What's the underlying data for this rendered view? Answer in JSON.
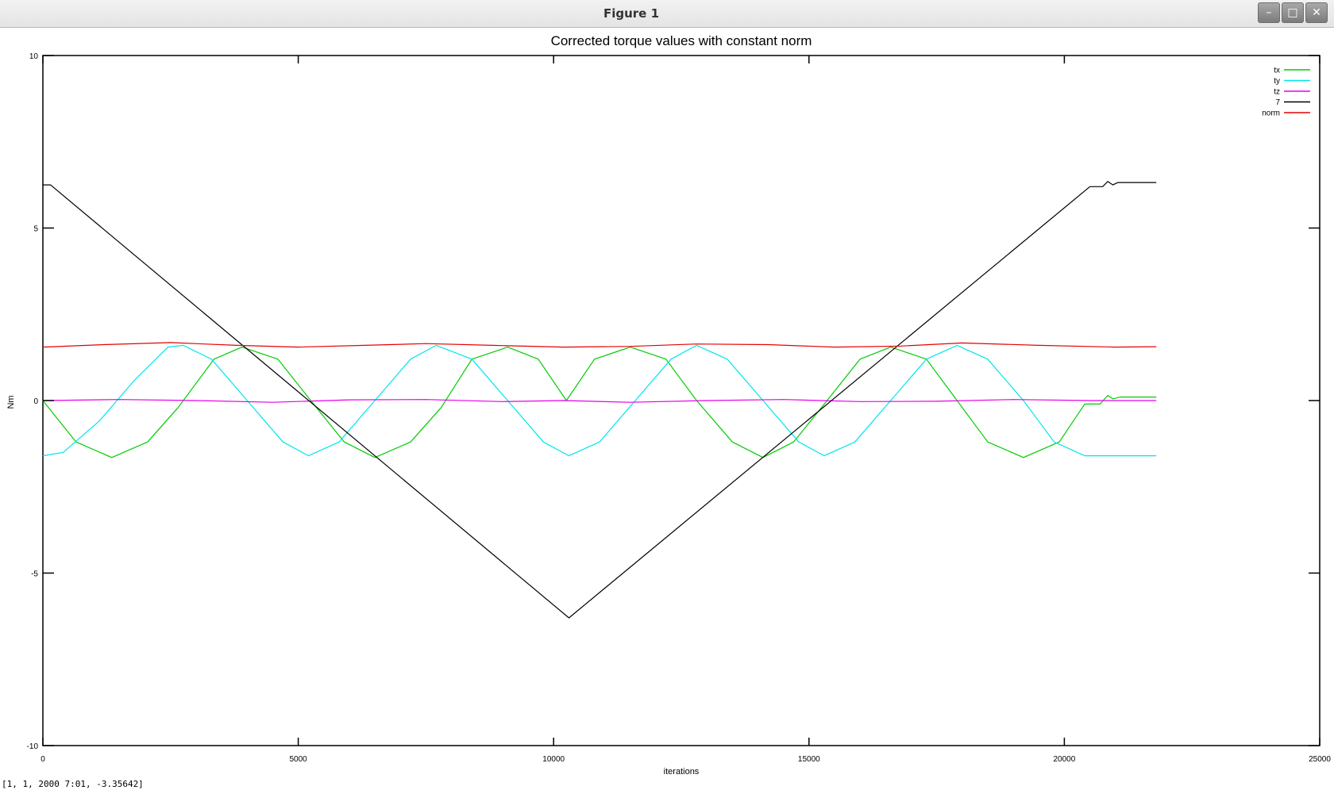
{
  "window": {
    "title": "Figure 1",
    "minimize_glyph": "–",
    "maximize_glyph": "□",
    "close_glyph": "✕"
  },
  "status": {
    "text": "[1, 1, 2000 7:01, -3.35642]"
  },
  "chart_data": {
    "type": "line",
    "title": "Corrected torque values with constant norm",
    "xlabel": "iterations",
    "ylabel": "Nm",
    "xlim": [
      0,
      25000
    ],
    "ylim": [
      -10,
      10
    ],
    "xticks": [
      0,
      5000,
      10000,
      15000,
      20000,
      25000
    ],
    "yticks": [
      -10,
      -5,
      0,
      5,
      10
    ],
    "xtick_labels": [
      "0",
      "5000",
      "10000",
      "15000",
      "20000",
      "25000"
    ],
    "ytick_labels": [
      "-10",
      "-5",
      "0",
      "5",
      "10"
    ],
    "grid": false,
    "legend_position": "top-right",
    "series": [
      {
        "name": "tx",
        "color": "#00cc00",
        "points": [
          [
            0,
            0
          ],
          [
            650,
            -1.2
          ],
          [
            1350,
            -1.65
          ],
          [
            2050,
            -1.2
          ],
          [
            2650,
            -0.2
          ],
          [
            3350,
            1.2
          ],
          [
            3900,
            1.55
          ],
          [
            4600,
            1.2
          ],
          [
            5300,
            -0.1
          ],
          [
            5900,
            -1.2
          ],
          [
            6500,
            -1.65
          ],
          [
            7200,
            -1.2
          ],
          [
            7800,
            -0.2
          ],
          [
            8400,
            1.2
          ],
          [
            9100,
            1.55
          ],
          [
            9700,
            1.2
          ],
          [
            10250,
            0
          ],
          [
            10800,
            1.2
          ],
          [
            11500,
            1.55
          ],
          [
            12200,
            1.2
          ],
          [
            12800,
            0
          ],
          [
            13500,
            -1.2
          ],
          [
            14100,
            -1.65
          ],
          [
            14700,
            -1.2
          ],
          [
            15300,
            -0.1
          ],
          [
            16000,
            1.2
          ],
          [
            16600,
            1.55
          ],
          [
            17300,
            1.2
          ],
          [
            17900,
            0
          ],
          [
            18500,
            -1.2
          ],
          [
            19200,
            -1.65
          ],
          [
            19900,
            -1.2
          ],
          [
            20400,
            -0.1
          ],
          [
            20700,
            -0.1
          ],
          [
            20850,
            0.15
          ],
          [
            20950,
            0.05
          ],
          [
            21100,
            0.1
          ],
          [
            21800,
            0.1
          ]
        ]
      },
      {
        "name": "ty",
        "color": "#00e5ee",
        "points": [
          [
            0,
            -1.6
          ],
          [
            400,
            -1.5
          ],
          [
            1100,
            -0.6
          ],
          [
            1800,
            0.6
          ],
          [
            2450,
            1.55
          ],
          [
            2750,
            1.6
          ],
          [
            3300,
            1.2
          ],
          [
            4000,
            0
          ],
          [
            4700,
            -1.2
          ],
          [
            5200,
            -1.6
          ],
          [
            5800,
            -1.2
          ],
          [
            6500,
            0
          ],
          [
            7200,
            1.2
          ],
          [
            7700,
            1.6
          ],
          [
            8400,
            1.2
          ],
          [
            9100,
            0
          ],
          [
            9800,
            -1.2
          ],
          [
            10300,
            -1.6
          ],
          [
            10900,
            -1.2
          ],
          [
            11600,
            0
          ],
          [
            12300,
            1.2
          ],
          [
            12800,
            1.6
          ],
          [
            13400,
            1.2
          ],
          [
            14100,
            0
          ],
          [
            14800,
            -1.2
          ],
          [
            15300,
            -1.6
          ],
          [
            15900,
            -1.2
          ],
          [
            16600,
            0
          ],
          [
            17300,
            1.2
          ],
          [
            17900,
            1.6
          ],
          [
            18500,
            1.2
          ],
          [
            19200,
            0
          ],
          [
            19800,
            -1.2
          ],
          [
            20400,
            -1.6
          ],
          [
            21000,
            -1.6
          ],
          [
            21800,
            -1.6
          ]
        ]
      },
      {
        "name": "tz",
        "color": "#e600e6",
        "points": [
          [
            0,
            0
          ],
          [
            1500,
            0.03
          ],
          [
            3000,
            0
          ],
          [
            4500,
            -0.05
          ],
          [
            6000,
            0.02
          ],
          [
            7500,
            0.03
          ],
          [
            9000,
            -0.03
          ],
          [
            10200,
            0
          ],
          [
            11500,
            -0.05
          ],
          [
            13000,
            0
          ],
          [
            14500,
            0.03
          ],
          [
            16000,
            -0.03
          ],
          [
            17500,
            -0.02
          ],
          [
            19000,
            0.03
          ],
          [
            20500,
            0
          ],
          [
            21800,
            0
          ]
        ]
      },
      {
        "name": "7",
        "color": "#000000",
        "points": [
          [
            0,
            6.25
          ],
          [
            150,
            6.25
          ],
          [
            10300,
            -6.3
          ],
          [
            20500,
            6.2
          ],
          [
            20750,
            6.2
          ],
          [
            20850,
            6.35
          ],
          [
            20950,
            6.25
          ],
          [
            21050,
            6.32
          ],
          [
            21800,
            6.32
          ]
        ]
      },
      {
        "name": "norm",
        "color": "#e60000",
        "points": [
          [
            0,
            1.55
          ],
          [
            1200,
            1.62
          ],
          [
            2500,
            1.68
          ],
          [
            3800,
            1.6
          ],
          [
            5000,
            1.55
          ],
          [
            6300,
            1.6
          ],
          [
            7500,
            1.65
          ],
          [
            8800,
            1.6
          ],
          [
            10200,
            1.55
          ],
          [
            11500,
            1.57
          ],
          [
            12800,
            1.64
          ],
          [
            14200,
            1.62
          ],
          [
            15500,
            1.55
          ],
          [
            16800,
            1.58
          ],
          [
            18000,
            1.67
          ],
          [
            19500,
            1.6
          ],
          [
            21000,
            1.55
          ],
          [
            21800,
            1.56
          ]
        ]
      }
    ]
  }
}
